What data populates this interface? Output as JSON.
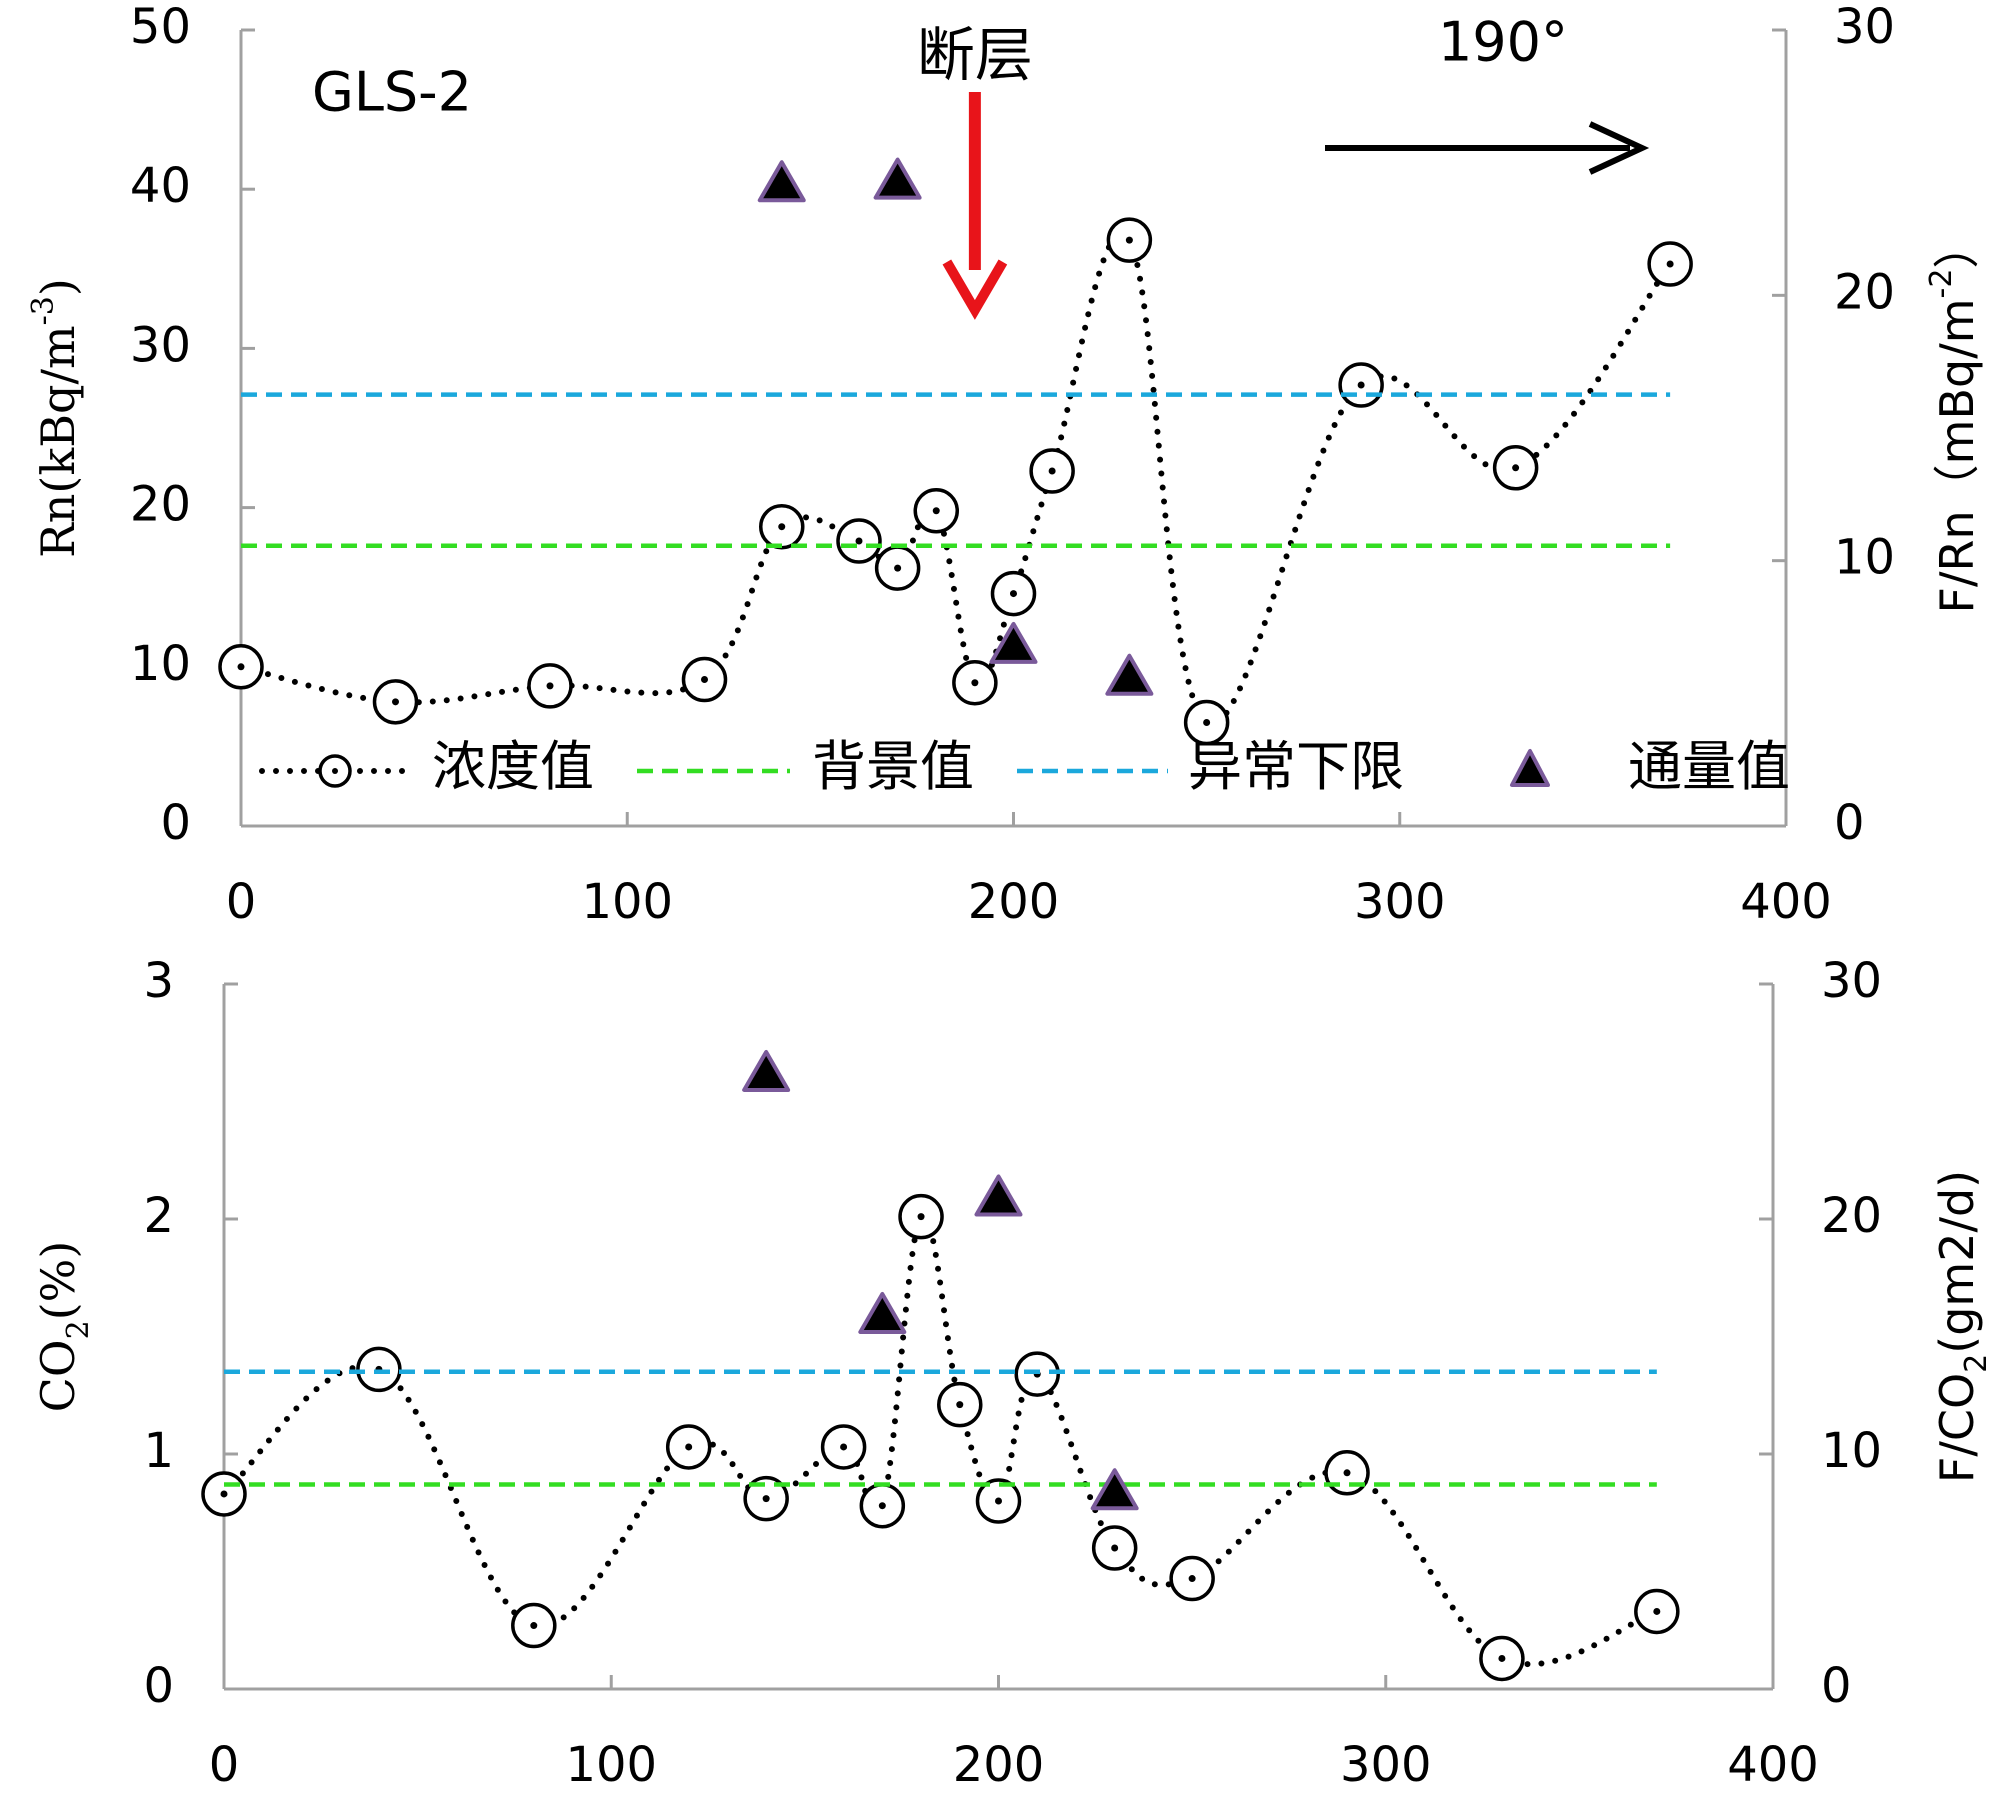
{
  "chart_data": [
    {
      "type": "line",
      "station_label": "GLS-2",
      "direction_label": "190°",
      "fault_label": "断层",
      "fault_x": 190,
      "xlabel": "",
      "ylabel_left": "Rn(kBq/m-3)",
      "ylabel_right": "F/Rn（mBq/m-2）",
      "xlim": [
        0,
        400
      ],
      "ylim_left": [
        0,
        50
      ],
      "ylim_right": [
        0,
        30
      ],
      "xticks": [
        "0",
        "100",
        "200",
        "300",
        "400"
      ],
      "yticks_left": [
        "0",
        "10",
        "20",
        "30",
        "40",
        "50"
      ],
      "yticks_right": [
        "0",
        "10",
        "20",
        "30"
      ],
      "grid": false,
      "legend_placement": "bottom",
      "legend": [
        "浓度值",
        "背景值",
        "异常下限",
        "通量值"
      ],
      "series": [
        {
          "name": "浓度值",
          "axis": "left",
          "color": "#000000",
          "marker": "open-circle-dot",
          "x": [
            0,
            40,
            80,
            120,
            140,
            160,
            170,
            180,
            190,
            200,
            210,
            230,
            250,
            290,
            330,
            370
          ],
          "y": [
            10,
            7.8,
            8.8,
            9.2,
            18.8,
            17.9,
            16.2,
            19.8,
            9.0,
            14.6,
            22.3,
            36.8,
            6.5,
            27.7,
            22.5,
            35.3
          ]
        },
        {
          "name": "背景值",
          "axis": "left",
          "color": "#33dd22",
          "style": "dashed",
          "x": [
            0,
            370
          ],
          "y": [
            17.6,
            17.6
          ]
        },
        {
          "name": "异常下限",
          "axis": "left",
          "color": "#1ba8dc",
          "style": "dashed",
          "x": [
            0,
            370
          ],
          "y": [
            27.1,
            27.1
          ]
        },
        {
          "name": "通量值",
          "axis": "right",
          "color": "#000000",
          "edge_color": "#7a5a9a",
          "marker": "triangle",
          "x": [
            140,
            170,
            200,
            230
          ],
          "y": [
            24.3,
            24.4,
            6.9,
            5.7
          ]
        }
      ]
    },
    {
      "type": "line",
      "xlabel": "",
      "ylabel_left": "CO2(%)",
      "ylabel_right": "F/CO2(gm2/d)",
      "xlim": [
        0,
        400
      ],
      "ylim_left": [
        0,
        3
      ],
      "ylim_right": [
        0,
        30
      ],
      "xticks": [
        "0",
        "100",
        "200",
        "300",
        "400"
      ],
      "yticks_left": [
        "0",
        "1",
        "2",
        "3"
      ],
      "yticks_right": [
        "0",
        "10",
        "20",
        "30"
      ],
      "grid": false,
      "series": [
        {
          "name": "浓度值",
          "axis": "left",
          "color": "#000000",
          "marker": "open-circle-dot",
          "x": [
            0,
            40,
            80,
            120,
            140,
            160,
            170,
            180,
            190,
            200,
            210,
            230,
            250,
            290,
            330,
            370
          ],
          "y": [
            0.83,
            1.36,
            0.27,
            1.03,
            0.81,
            1.03,
            0.78,
            2.01,
            1.21,
            0.8,
            1.34,
            0.6,
            0.47,
            0.92,
            0.13,
            0.33
          ]
        },
        {
          "name": "背景值",
          "axis": "left",
          "color": "#33dd22",
          "style": "dashed",
          "x": [
            0,
            370
          ],
          "y": [
            0.87,
            0.87
          ]
        },
        {
          "name": "异常下限",
          "axis": "left",
          "color": "#1ba8dc",
          "style": "dashed",
          "x": [
            0,
            370
          ],
          "y": [
            1.35,
            1.35
          ]
        },
        {
          "name": "通量值",
          "axis": "right",
          "color": "#000000",
          "edge_color": "#7a5a9a",
          "marker": "triangle",
          "x": [
            140,
            170,
            200,
            230
          ],
          "y": [
            26.3,
            16.0,
            21.0,
            8.5
          ]
        }
      ]
    }
  ]
}
